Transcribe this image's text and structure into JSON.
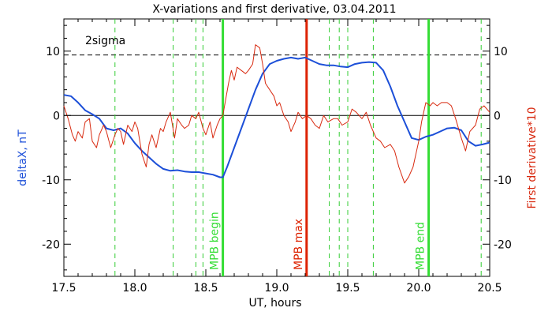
{
  "chart_data": {
    "type": "line",
    "title": "X-variations and first derivative, 03.04.2011",
    "xlabel": "UT, hours",
    "ylabel_left": "deltaX, nT",
    "ylabel_right": "First derivative*10",
    "xlim": [
      17.5,
      20.5
    ],
    "ylim": [
      -25,
      15
    ],
    "x_ticks": [
      17.5,
      18.0,
      18.5,
      19.0,
      19.5,
      20.0,
      20.5
    ],
    "x_tick_labels": [
      "17.5",
      "18.0",
      "18.5",
      "19.0",
      "19.5",
      "20.0",
      "20.5"
    ],
    "y_ticks": [
      10,
      0,
      -10,
      -20
    ],
    "y_tick_labels": [
      "10",
      "0",
      "-10",
      "-20"
    ],
    "grid": false,
    "colors": {
      "deltaX": "#1c4fd8",
      "derivative": "#d82a10",
      "mpb_edges": "#33dd33",
      "mpb_max": "#dd2200",
      "dashed_markers": "#33cc33",
      "text_black": "#000000"
    },
    "threshold": {
      "label": "2sigma",
      "value": 9.4
    },
    "zero_line": 0,
    "dashed_markers_x": [
      17.86,
      18.27,
      18.43,
      18.48,
      19.37,
      19.44,
      19.5,
      19.68,
      20.44
    ],
    "events": [
      {
        "label": "MPB begin",
        "x": 18.62
      },
      {
        "label": "MPB max",
        "x": 19.21
      },
      {
        "label": "MPB end",
        "x": 20.07
      }
    ],
    "series": [
      {
        "key": "deltaX",
        "x": [
          17.5,
          17.55,
          17.6,
          17.65,
          17.7,
          17.75,
          17.8,
          17.85,
          17.9,
          17.95,
          18.0,
          18.05,
          18.1,
          18.15,
          18.2,
          18.25,
          18.3,
          18.35,
          18.4,
          18.45,
          18.5,
          18.55,
          18.6,
          18.62,
          18.65,
          18.7,
          18.75,
          18.8,
          18.85,
          18.9,
          18.95,
          19.0,
          19.05,
          19.1,
          19.15,
          19.2,
          19.25,
          19.3,
          19.35,
          19.4,
          19.45,
          19.5,
          19.55,
          19.6,
          19.65,
          19.7,
          19.75,
          19.8,
          19.85,
          19.9,
          19.95,
          20.0,
          20.05,
          20.1,
          20.15,
          20.2,
          20.25,
          20.3,
          20.35,
          20.4,
          20.45,
          20.5
        ],
        "y": [
          3.2,
          3.0,
          2.0,
          0.8,
          0.2,
          -0.5,
          -2.0,
          -2.3,
          -2.0,
          -2.8,
          -4.3,
          -5.5,
          -6.5,
          -7.5,
          -8.3,
          -8.6,
          -8.5,
          -8.7,
          -8.8,
          -8.8,
          -9.0,
          -9.2,
          -9.6,
          -9.6,
          -8.0,
          -5.0,
          -2.0,
          1.0,
          4.0,
          6.5,
          8.0,
          8.5,
          8.8,
          9.0,
          8.8,
          9.0,
          8.5,
          8.0,
          7.8,
          7.8,
          7.6,
          7.5,
          8.0,
          8.2,
          8.3,
          8.2,
          7.0,
          4.5,
          1.5,
          -1.0,
          -3.5,
          -3.8,
          -3.3,
          -3.0,
          -2.5,
          -2.0,
          -1.9,
          -2.3,
          -4.0,
          -4.7,
          -4.5,
          -4.2
        ]
      },
      {
        "key": "derivative",
        "x": [
          17.5,
          17.53,
          17.56,
          17.58,
          17.6,
          17.63,
          17.65,
          17.68,
          17.7,
          17.73,
          17.75,
          17.78,
          17.8,
          17.83,
          17.86,
          17.88,
          17.9,
          17.92,
          17.95,
          17.98,
          18.0,
          18.02,
          18.05,
          18.08,
          18.1,
          18.12,
          18.15,
          18.18,
          18.2,
          18.22,
          18.25,
          18.28,
          18.3,
          18.33,
          18.35,
          18.38,
          18.4,
          18.43,
          18.45,
          18.48,
          18.5,
          18.53,
          18.55,
          18.58,
          18.6,
          18.62,
          18.64,
          18.66,
          18.68,
          18.7,
          18.72,
          18.75,
          18.78,
          18.8,
          18.83,
          18.85,
          18.88,
          18.9,
          18.92,
          18.95,
          18.98,
          19.0,
          19.02,
          19.05,
          19.08,
          19.1,
          19.13,
          19.15,
          19.18,
          19.21,
          19.24,
          19.27,
          19.3,
          19.33,
          19.36,
          19.4,
          19.43,
          19.46,
          19.5,
          19.53,
          19.56,
          19.6,
          19.63,
          19.66,
          19.7,
          19.73,
          19.76,
          19.8,
          19.83,
          19.86,
          19.9,
          19.93,
          19.96,
          20.0,
          20.02,
          20.05,
          20.08,
          20.1,
          20.13,
          20.16,
          20.2,
          20.23,
          20.26,
          20.3,
          20.33,
          20.36,
          20.4,
          20.43,
          20.46,
          20.5
        ],
        "y": [
          1.5,
          -0.5,
          -3.0,
          -4.0,
          -2.5,
          -3.5,
          -1.0,
          -0.5,
          -4.0,
          -5.0,
          -3.0,
          -1.5,
          -2.5,
          -5.0,
          -3.0,
          -2.0,
          -2.5,
          -4.5,
          -1.5,
          -2.5,
          -1.0,
          -2.0,
          -6.0,
          -8.0,
          -4.5,
          -3.0,
          -5.0,
          -2.0,
          -2.5,
          -1.0,
          0.5,
          -3.5,
          -0.5,
          -1.5,
          -2.0,
          -1.5,
          0.0,
          -0.5,
          0.5,
          -2.0,
          -3.0,
          -1.0,
          -3.5,
          -1.5,
          -0.5,
          0.0,
          2.5,
          5.0,
          7.0,
          5.5,
          7.5,
          7.0,
          6.5,
          7.0,
          8.0,
          11.0,
          10.5,
          8.0,
          5.0,
          4.0,
          3.0,
          1.5,
          2.0,
          0.0,
          -1.0,
          -2.5,
          -1.0,
          0.5,
          -0.5,
          0.0,
          -0.5,
          -1.5,
          -2.0,
          0.0,
          -1.0,
          -0.5,
          -0.5,
          -1.5,
          -1.0,
          1.0,
          0.5,
          -0.5,
          0.5,
          -1.5,
          -3.5,
          -4.0,
          -5.0,
          -4.5,
          -5.5,
          -8.0,
          -10.5,
          -9.5,
          -8.0,
          -4.0,
          -1.0,
          2.0,
          1.5,
          2.0,
          1.5,
          2.0,
          2.0,
          1.5,
          -0.5,
          -3.5,
          -5.5,
          -2.5,
          -1.5,
          1.0,
          1.5,
          0.5
        ]
      }
    ]
  }
}
